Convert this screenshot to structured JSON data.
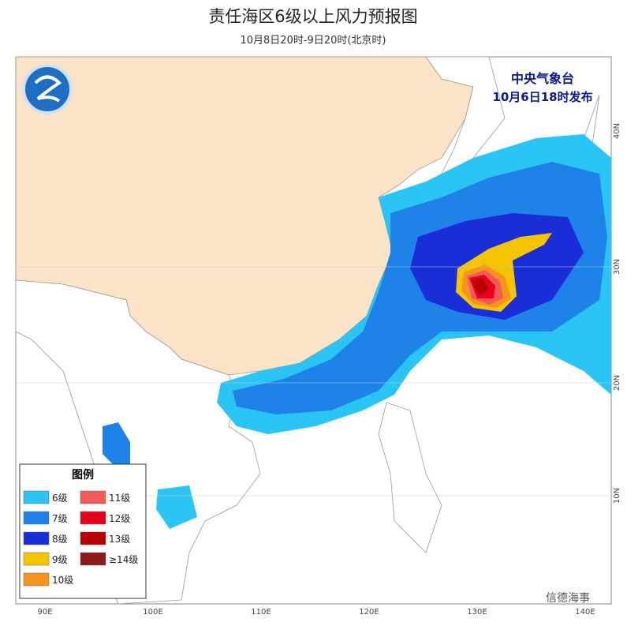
{
  "header": {
    "title": "责任海区6级以上风力预报图",
    "subtitle": "10月8日20时-9日20时(北京时)"
  },
  "issuer": {
    "name": "中央气象台",
    "time": "10月6日18时发布"
  },
  "legend": {
    "title": "图例",
    "items": [
      "6级",
      "7级",
      "8级",
      "9级",
      "10级",
      "11级",
      "12级",
      "13级",
      "≥14级"
    ]
  },
  "axes": {
    "lon": [
      "90E",
      "100E",
      "110E",
      "120E",
      "130E",
      "140E"
    ],
    "lat": [
      "40N",
      "30N",
      "20N",
      "10N"
    ]
  },
  "watermark": "信德海事"
}
